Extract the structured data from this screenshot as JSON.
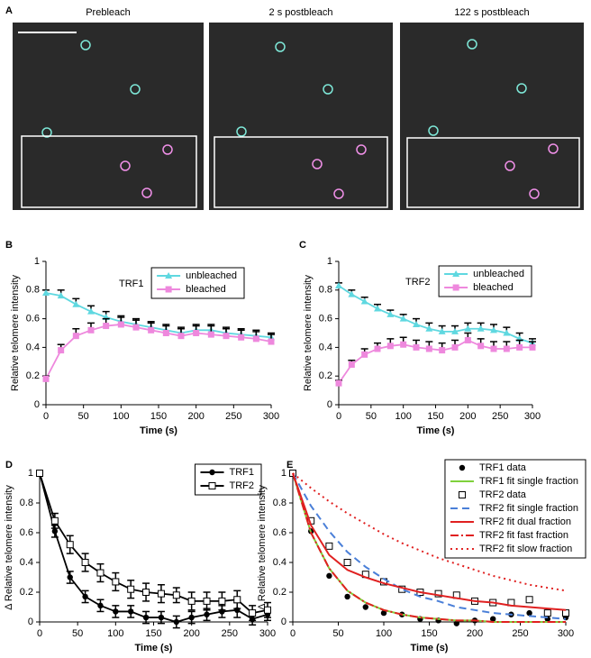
{
  "panel_a": {
    "label": "A",
    "titles": [
      "Prebleach",
      "2 s postbleach",
      "122 s postbleach"
    ]
  },
  "chart_data": [
    {
      "type": "line",
      "panel": "B",
      "annotation": "TRF1",
      "xlabel": "Time (s)",
      "ylabel": "Relative telomere intensity",
      "x": [
        0,
        20,
        40,
        60,
        80,
        100,
        120,
        140,
        160,
        180,
        200,
        220,
        240,
        260,
        280,
        300
      ],
      "xlim": [
        0,
        300
      ],
      "xticks": [
        0,
        50,
        100,
        150,
        200,
        250,
        300
      ],
      "ylim": [
        0,
        1
      ],
      "yticks": [
        0,
        0.2,
        0.4,
        0.6,
        0.8,
        1
      ],
      "legend": "upper right",
      "error_direction": "up",
      "series": [
        {
          "name": "unbleached",
          "color": "#5fd8e0",
          "marker": "triangle",
          "values": [
            0.78,
            0.76,
            0.7,
            0.65,
            0.61,
            0.58,
            0.56,
            0.54,
            0.52,
            0.5,
            0.52,
            0.52,
            0.5,
            0.49,
            0.48,
            0.47
          ],
          "errors": [
            0.02,
            0.04,
            0.04,
            0.04,
            0.04,
            0.04,
            0.04,
            0.04,
            0.04,
            0.04,
            0.04,
            0.04,
            0.04,
            0.04,
            0.04,
            0.03
          ]
        },
        {
          "name": "bleached",
          "color": "#ee88dd",
          "marker": "square",
          "values": [
            0.18,
            0.38,
            0.48,
            0.52,
            0.55,
            0.56,
            0.54,
            0.52,
            0.5,
            0.48,
            0.5,
            0.49,
            0.48,
            0.47,
            0.46,
            0.44
          ],
          "errors": [
            0.02,
            0.04,
            0.05,
            0.05,
            0.05,
            0.05,
            0.05,
            0.05,
            0.05,
            0.05,
            0.05,
            0.06,
            0.05,
            0.05,
            0.05,
            0.05
          ]
        }
      ]
    },
    {
      "type": "line",
      "panel": "C",
      "annotation": "TRF2",
      "xlabel": "Time (s)",
      "ylabel": "Relative telomere intensity",
      "x": [
        0,
        20,
        40,
        60,
        80,
        100,
        120,
        140,
        160,
        180,
        200,
        220,
        240,
        260,
        280,
        300
      ],
      "xlim": [
        0,
        300
      ],
      "xticks": [
        0,
        50,
        100,
        150,
        200,
        250,
        300
      ],
      "ylim": [
        0,
        1
      ],
      "yticks": [
        0,
        0.2,
        0.4,
        0.6,
        0.8,
        1
      ],
      "legend": "upper right",
      "error_direction": "up",
      "series": [
        {
          "name": "unbleached",
          "color": "#5fd8e0",
          "marker": "triangle",
          "values": [
            0.83,
            0.77,
            0.72,
            0.67,
            0.63,
            0.6,
            0.56,
            0.53,
            0.51,
            0.51,
            0.53,
            0.53,
            0.52,
            0.5,
            0.46,
            0.43
          ],
          "errors": [
            0.02,
            0.03,
            0.03,
            0.03,
            0.03,
            0.03,
            0.04,
            0.04,
            0.04,
            0.04,
            0.04,
            0.04,
            0.04,
            0.04,
            0.04,
            0.03
          ]
        },
        {
          "name": "bleached",
          "color": "#ee88dd",
          "marker": "square",
          "values": [
            0.15,
            0.28,
            0.35,
            0.39,
            0.41,
            0.42,
            0.4,
            0.39,
            0.38,
            0.4,
            0.45,
            0.41,
            0.39,
            0.39,
            0.4,
            0.4
          ],
          "errors": [
            0.02,
            0.03,
            0.04,
            0.04,
            0.05,
            0.05,
            0.05,
            0.05,
            0.05,
            0.05,
            0.05,
            0.05,
            0.05,
            0.05,
            0.05,
            0.04
          ]
        }
      ]
    },
    {
      "type": "line",
      "panel": "D",
      "xlabel": "Time (s)",
      "ylabel": "Δ Relative telomere intensity",
      "x": [
        0,
        20,
        40,
        60,
        80,
        100,
        120,
        140,
        160,
        180,
        200,
        220,
        240,
        260,
        280,
        300
      ],
      "xlim": [
        0,
        300
      ],
      "xticks": [
        0,
        50,
        100,
        150,
        200,
        250,
        300
      ],
      "ylim": [
        0,
        1
      ],
      "yticks": [
        0,
        0.2,
        0.4,
        0.6,
        0.8,
        1
      ],
      "legend": "upper right",
      "error_direction": "both",
      "series": [
        {
          "name": "TRF1",
          "color": "#000000",
          "marker": "circle",
          "values": [
            1,
            0.61,
            0.3,
            0.17,
            0.11,
            0.07,
            0.07,
            0.03,
            0.03,
            0.0,
            0.03,
            0.05,
            0.07,
            0.08,
            0.02,
            0.05
          ],
          "errors": [
            0,
            0.04,
            0.04,
            0.04,
            0.04,
            0.04,
            0.04,
            0.04,
            0.04,
            0.04,
            0.04,
            0.04,
            0.04,
            0.05,
            0.04,
            0.04
          ]
        },
        {
          "name": "TRF2",
          "color": "#000000",
          "marker": "open-square",
          "values": [
            1,
            0.68,
            0.52,
            0.4,
            0.33,
            0.27,
            0.22,
            0.2,
            0.19,
            0.18,
            0.14,
            0.14,
            0.14,
            0.15,
            0.06,
            0.08
          ],
          "errors": [
            0,
            0.05,
            0.06,
            0.06,
            0.06,
            0.06,
            0.06,
            0.06,
            0.06,
            0.05,
            0.06,
            0.06,
            0.06,
            0.06,
            0.05,
            0.05
          ]
        }
      ]
    },
    {
      "type": "line",
      "panel": "E",
      "xlabel": "Time (s)",
      "ylabel": "Δ Relative telomere intensity",
      "x": [
        0,
        20,
        40,
        60,
        80,
        100,
        120,
        140,
        160,
        180,
        200,
        220,
        240,
        260,
        280,
        300
      ],
      "xlim": [
        0,
        300
      ],
      "xticks": [
        0,
        50,
        100,
        150,
        200,
        250,
        300
      ],
      "ylim": [
        0,
        1
      ],
      "yticks": [
        0,
        0.2,
        0.4,
        0.6,
        0.8,
        1
      ],
      "legend": "upper right",
      "series": [
        {
          "name": "TRF1 data",
          "color": "#000000",
          "marker": "circle",
          "line": false,
          "values": [
            1,
            0.61,
            0.31,
            0.17,
            0.1,
            0.06,
            0.05,
            0.02,
            0.01,
            -0.01,
            0.01,
            0.02,
            0.05,
            0.06,
            0.02,
            0.03
          ]
        },
        {
          "name": "TRF1 fit single fraction",
          "color": "#7fd13b",
          "marker": "none",
          "values": [
            1,
            0.6,
            0.36,
            0.21,
            0.13,
            0.08,
            0.05,
            0.03,
            0.02,
            0.01,
            0.01,
            0,
            0,
            0,
            0,
            0
          ]
        },
        {
          "name": "TRF2 data",
          "color": "#000000",
          "marker": "open-square",
          "line": false,
          "values": [
            1,
            0.68,
            0.51,
            0.4,
            0.32,
            0.27,
            0.22,
            0.2,
            0.19,
            0.18,
            0.14,
            0.13,
            0.13,
            0.15,
            0.06,
            0.06
          ]
        },
        {
          "name": "TRF2 fit single fraction",
          "color": "#4a7fd8",
          "marker": "none",
          "dash": "dashed",
          "values": [
            1,
            0.78,
            0.61,
            0.47,
            0.37,
            0.29,
            0.22,
            0.17,
            0.14,
            0.1,
            0.08,
            0.06,
            0.05,
            0.04,
            0.03,
            0.02
          ]
        },
        {
          "name": "TRF2 fit dual fraction",
          "color": "#e02020",
          "marker": "none",
          "values": [
            1,
            0.65,
            0.45,
            0.35,
            0.3,
            0.26,
            0.23,
            0.2,
            0.18,
            0.16,
            0.14,
            0.13,
            0.11,
            0.1,
            0.09,
            0.08
          ]
        },
        {
          "name": "TRF2 fit fast fraction",
          "color": "#e02020",
          "marker": "none",
          "dash": "dashdot",
          "values": [
            1,
            0.6,
            0.36,
            0.21,
            0.13,
            0.08,
            0.05,
            0.03,
            0.02,
            0.01,
            0.01,
            0,
            0,
            0,
            0,
            0
          ]
        },
        {
          "name": "TRF2 fit slow fraction",
          "color": "#e02020",
          "marker": "none",
          "dash": "dotted",
          "values": [
            1,
            0.9,
            0.81,
            0.73,
            0.66,
            0.59,
            0.53,
            0.48,
            0.43,
            0.39,
            0.35,
            0.31,
            0.28,
            0.25,
            0.23,
            0.21
          ]
        }
      ]
    }
  ]
}
